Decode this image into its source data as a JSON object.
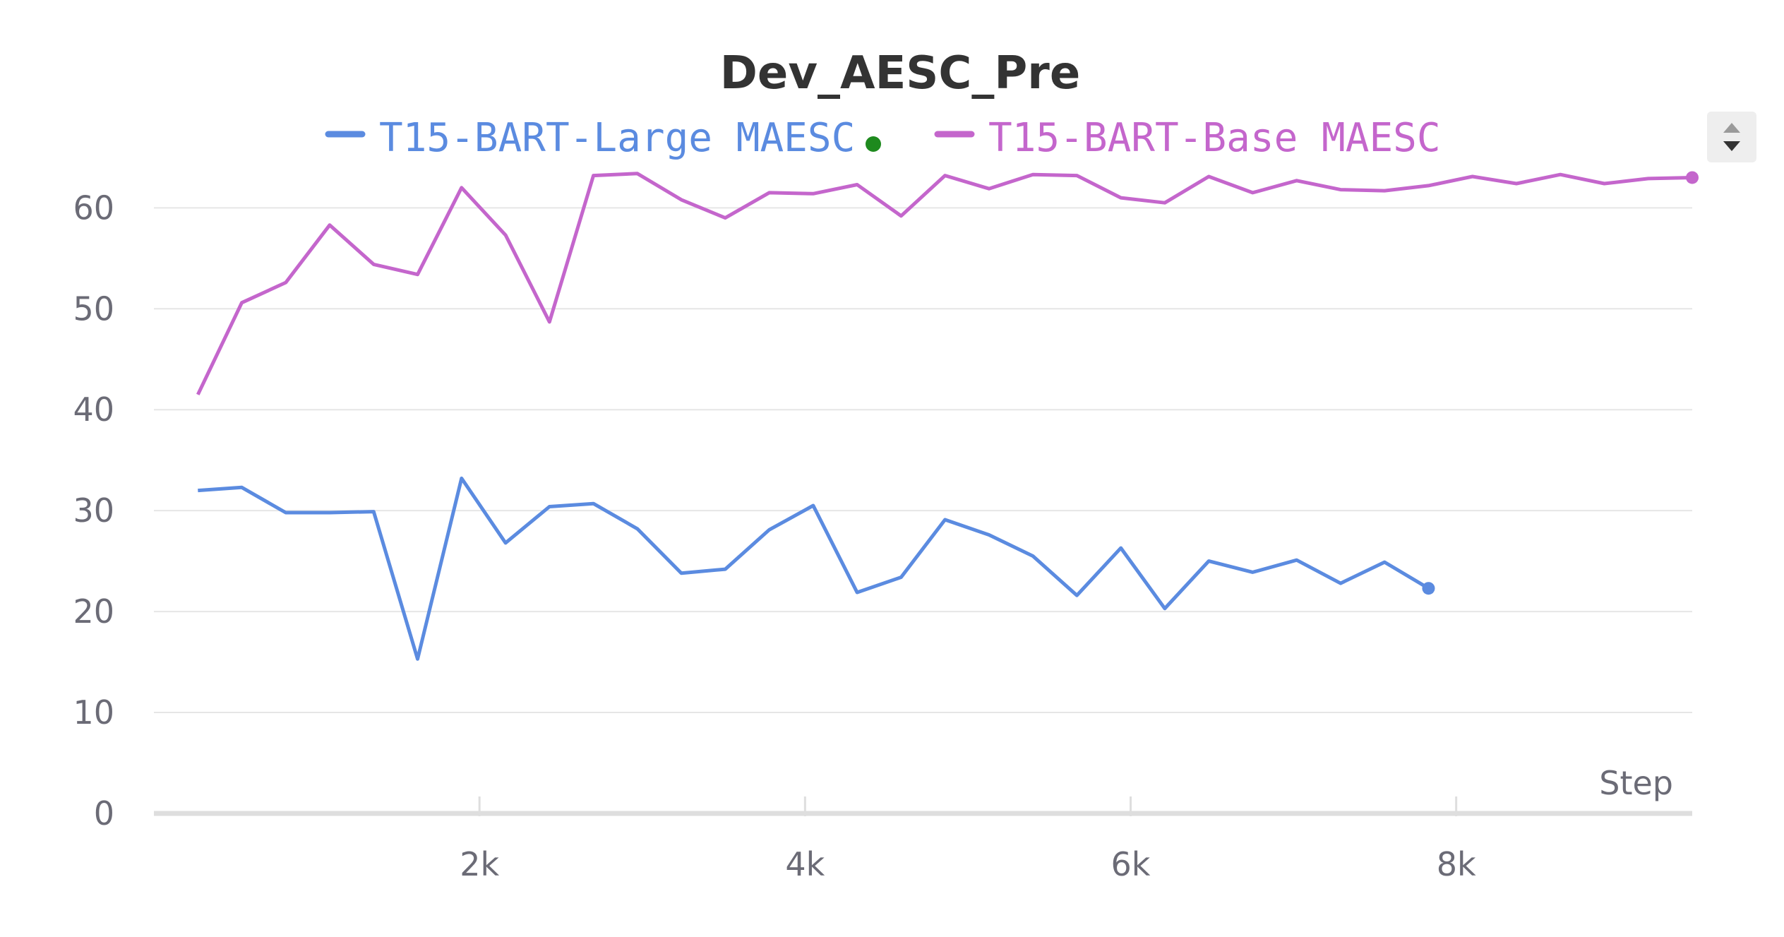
{
  "chart_data": {
    "type": "line",
    "title": "Dev_AESC_Pre",
    "xlabel": "Step",
    "ylabel": "",
    "xlim": [
      0,
      9450
    ],
    "ylim": [
      0,
      68
    ],
    "grid": true,
    "legend_position": "top-center",
    "x_ticks": [
      {
        "value": 2000,
        "label": "2k"
      },
      {
        "value": 4000,
        "label": "4k"
      },
      {
        "value": 6000,
        "label": "6k"
      },
      {
        "value": 8000,
        "label": "8k"
      }
    ],
    "y_ticks": [
      {
        "value": 0,
        "label": "0"
      },
      {
        "value": 10,
        "label": "10"
      },
      {
        "value": 20,
        "label": "20"
      },
      {
        "value": 30,
        "label": "30"
      },
      {
        "value": 40,
        "label": "40"
      },
      {
        "value": 50,
        "label": "50"
      },
      {
        "value": 60,
        "label": "60"
      }
    ],
    "series": [
      {
        "name": "T15-BART-Large MAESC",
        "color": "#5b8be0",
        "x": [
          270,
          540,
          810,
          1080,
          1350,
          1620,
          1890,
          2160,
          2430,
          2700,
          2970,
          3240,
          3510,
          3780,
          4050,
          4320,
          4590,
          4860,
          5130,
          5400,
          5670,
          5940,
          6210,
          6480,
          6750,
          7020,
          7290,
          7560,
          7830
        ],
        "y": [
          32.0,
          32.3,
          29.8,
          29.8,
          29.9,
          15.3,
          33.2,
          26.8,
          30.4,
          30.7,
          28.2,
          23.8,
          24.2,
          28.1,
          30.5,
          21.9,
          23.4,
          29.1,
          27.6,
          25.5,
          21.6,
          26.3,
          20.3,
          25.0,
          23.9,
          25.1,
          22.8,
          24.9,
          22.3
        ]
      },
      {
        "name": "T15-BART-Base MAESC",
        "color": "#c466cc",
        "x": [
          270,
          540,
          810,
          1080,
          1350,
          1620,
          1890,
          2160,
          2430,
          2700,
          2970,
          3240,
          3510,
          3780,
          4050,
          4320,
          4590,
          4860,
          5130,
          5400,
          5670,
          5940,
          6210,
          6480,
          6750,
          7020,
          7290,
          7560,
          7830,
          8100,
          8370,
          8640,
          8910,
          9180,
          9450
        ],
        "y": [
          41.5,
          50.6,
          52.6,
          58.3,
          54.4,
          53.4,
          62.0,
          57.3,
          48.7,
          63.2,
          63.4,
          60.8,
          59.0,
          61.5,
          61.4,
          62.3,
          59.2,
          63.2,
          61.9,
          63.3,
          63.2,
          61.0,
          60.5,
          63.1,
          61.5,
          62.7,
          61.8,
          61.7,
          62.2,
          63.1,
          62.4,
          63.3,
          62.4,
          62.9,
          63.0
        ]
      }
    ]
  }
}
